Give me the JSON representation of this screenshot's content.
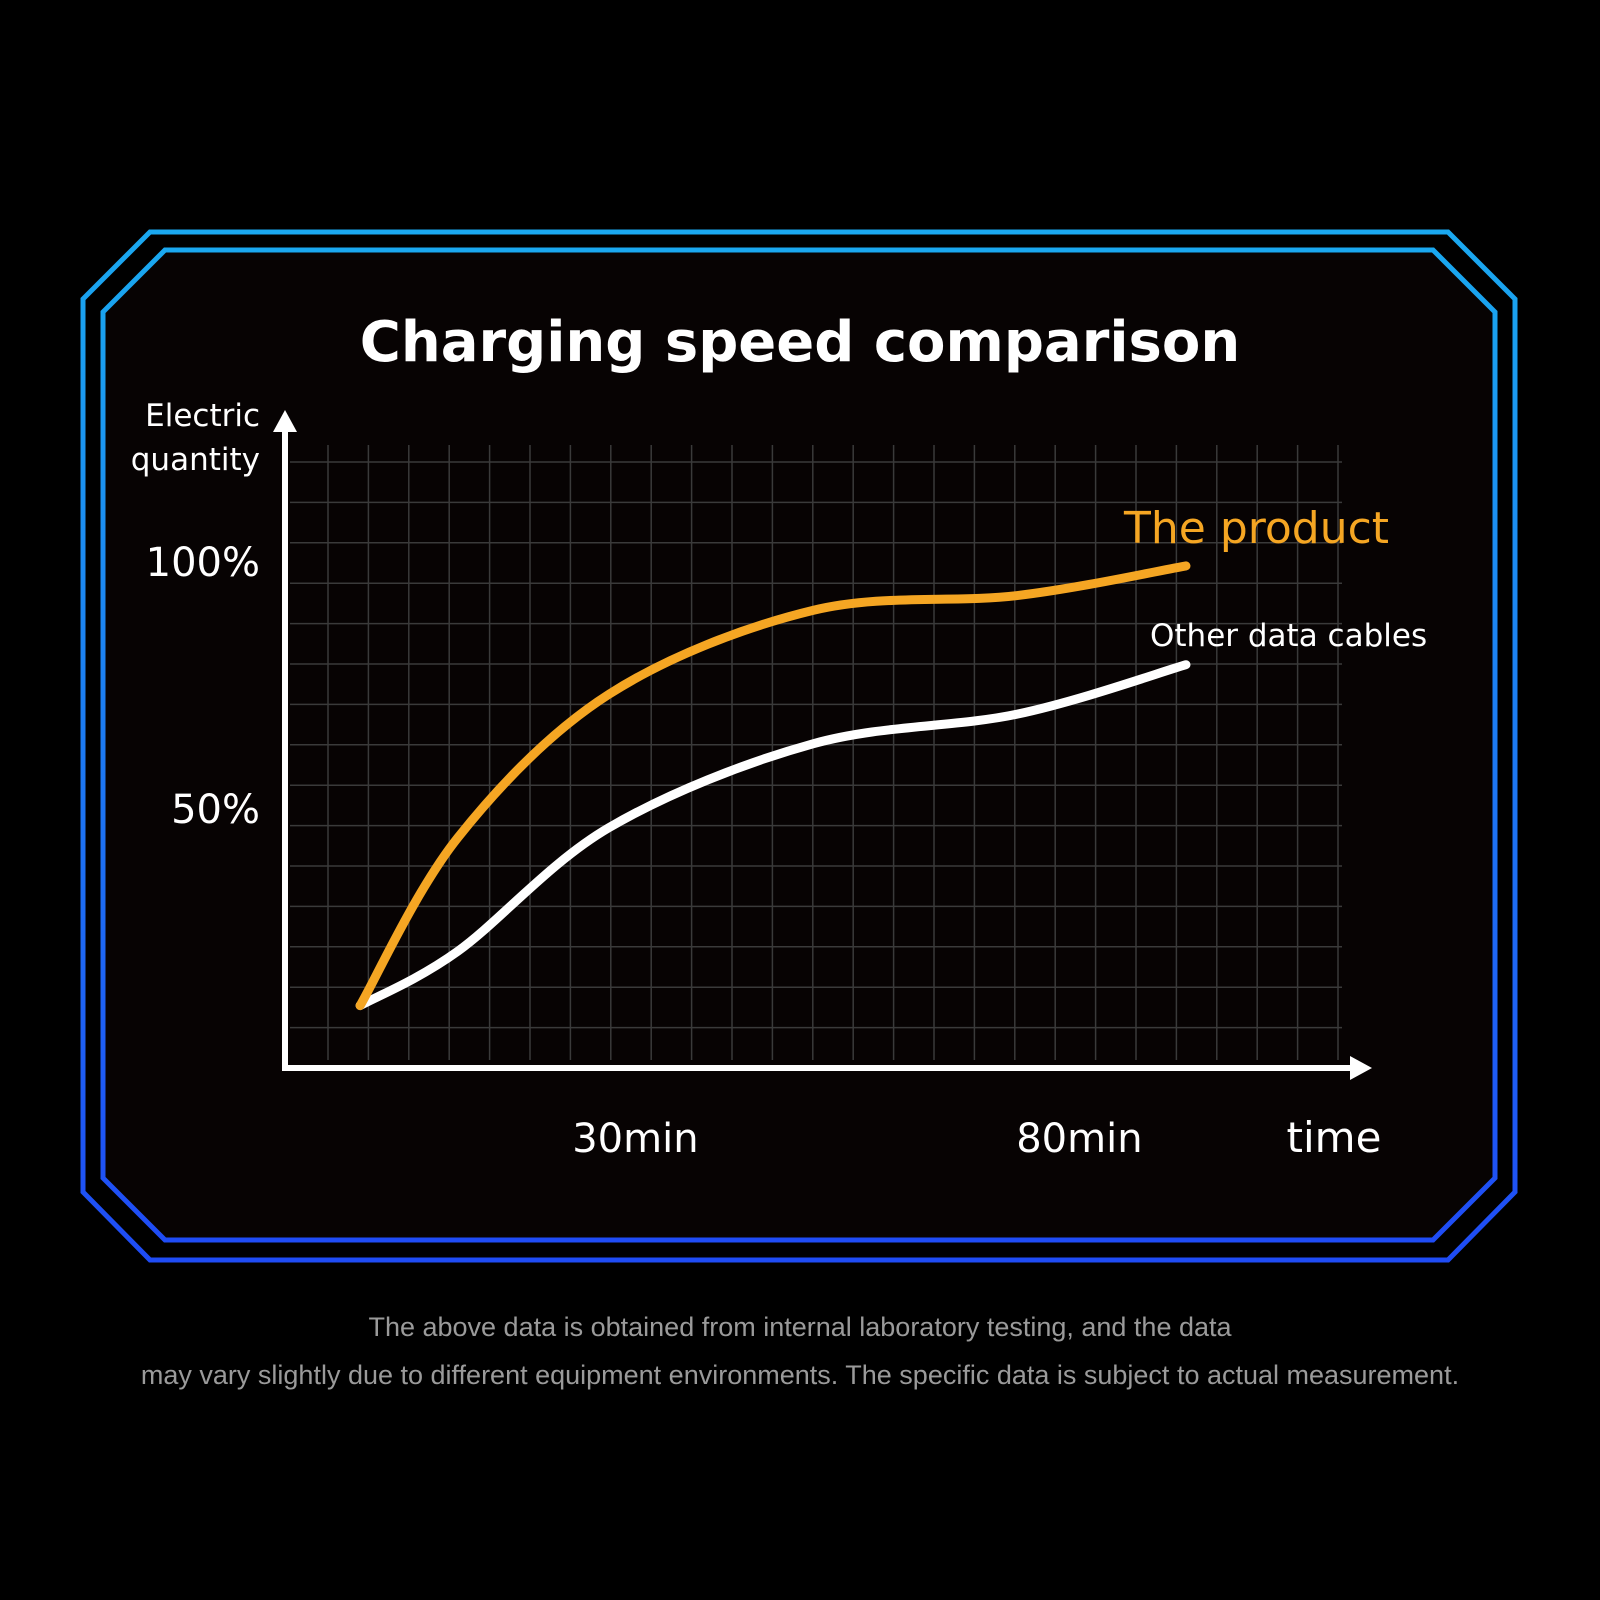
{
  "chart_data": {
    "type": "line",
    "title": "Charging speed comparison",
    "ylabel": "Electric quantity",
    "xlabel": "time",
    "x_tick_labels": [
      "30min",
      "80min"
    ],
    "x_ticks": [
      30,
      80
    ],
    "y_tick_labels": [
      "100%",
      "50%"
    ],
    "y_ticks": [
      100,
      50
    ],
    "xlim": [
      -10,
      110
    ],
    "ylim": [
      0,
      110
    ],
    "grid": true,
    "series": [
      {
        "name": "The product",
        "color": "#f5a623",
        "x": [
          -1,
          10,
          27,
          50,
          73,
          92
        ],
        "y": [
          10,
          44,
          73,
          90,
          93,
          99
        ]
      },
      {
        "name": "Other data cables",
        "color": "#ffffff",
        "x": [
          -1,
          10,
          27,
          50,
          73,
          92
        ],
        "y": [
          10,
          21,
          46,
          63,
          69,
          79
        ]
      }
    ]
  },
  "footer": {
    "line1": "The above data is obtained from internal laboratory testing, and the data",
    "line2": "may vary slightly due to different equipment environments. The specific data is subject to actual measurement."
  },
  "colors": {
    "frame_top": "#1aa8f0",
    "frame_bottom": "#1f4cf5",
    "background": "#070303"
  }
}
